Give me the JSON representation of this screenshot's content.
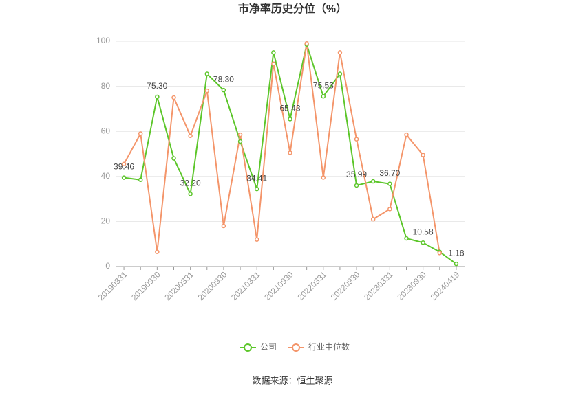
{
  "chart_data": {
    "type": "line",
    "title": "市净率历史分位（%）",
    "categories": [
      "20190331",
      null,
      "20190930",
      null,
      "20200331",
      null,
      "20200930",
      null,
      "20210331",
      null,
      "20210930",
      null,
      "20220331",
      null,
      "20220930",
      null,
      "20230331",
      null,
      "20230930",
      null,
      "20240419"
    ],
    "series": [
      {
        "name": "公司",
        "color": "#5cc62a",
        "values": [
          39.46,
          38.5,
          75.3,
          48,
          32.2,
          85.5,
          78.3,
          55.5,
          34.41,
          95,
          65.43,
          98.5,
          75.53,
          85.5,
          35.99,
          37.8,
          36.7,
          12.5,
          10.58,
          6.5,
          1.18
        ],
        "value_labels": [
          "39.46",
          null,
          "75.30",
          null,
          "32.20",
          null,
          "78.30",
          null,
          "34.41",
          null,
          "65.43",
          null,
          "75.53",
          null,
          "35.99",
          null,
          "36.70",
          null,
          "10.58",
          null,
          "1.18"
        ]
      },
      {
        "name": "行业中位数",
        "color": "#f4956a",
        "values": [
          45.5,
          59,
          6.5,
          75,
          58,
          78,
          18,
          58.5,
          12,
          90,
          50.5,
          99,
          39.5,
          95,
          56.5,
          21,
          25.5,
          58.5,
          49.5,
          6,
          null
        ]
      }
    ],
    "ylim": [
      0,
      100
    ],
    "yticks": [
      0,
      20,
      40,
      60,
      80,
      100
    ],
    "grid": true,
    "legend": "bottom",
    "source": "数据来源：恒生聚源"
  }
}
